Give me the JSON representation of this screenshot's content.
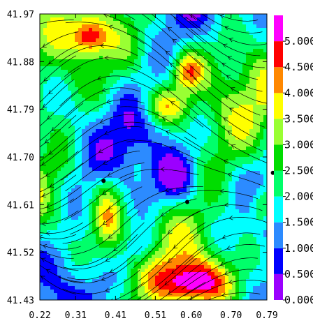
{
  "chart_data": {
    "type": "heatmap",
    "title": "",
    "xlabel": "",
    "ylabel": "",
    "xlim": [
      0.22,
      0.79
    ],
    "ylim": [
      41.43,
      41.97
    ],
    "x_ticks": [
      "0.22",
      "0.31",
      "0.41",
      "0.51",
      "0.60",
      "0.70",
      "0.79"
    ],
    "y_ticks": [
      "41.97",
      "41.88",
      "41.79",
      "41.70",
      "41.61",
      "41.52",
      "41.43"
    ],
    "overlay": "streamlines",
    "markers": [
      {
        "x": 0.38,
        "y": 41.655
      },
      {
        "x": 0.59,
        "y": 41.615
      },
      {
        "x": 0.805,
        "y": 41.67
      }
    ],
    "colorbar": {
      "range": [
        0.0,
        5.5
      ],
      "tick_labels": [
        "0.000",
        "0.500",
        "1.000",
        "1.500",
        "2.000",
        "2.500",
        "3.000",
        "3.500",
        "4.000",
        "4.500",
        "5.000"
      ],
      "tick_values": [
        0.0,
        0.5,
        1.0,
        1.5,
        2.0,
        2.5,
        3.0,
        3.5,
        4.0,
        4.5,
        5.0
      ],
      "bins": [
        {
          "from": 0.0,
          "to": 0.5,
          "color": "#9b00ff"
        },
        {
          "from": 0.5,
          "to": 1.0,
          "color": "#0000ff"
        },
        {
          "from": 1.0,
          "to": 1.5,
          "color": "#2c8bff"
        },
        {
          "from": 1.5,
          "to": 2.0,
          "color": "#00ffff"
        },
        {
          "from": 2.0,
          "to": 2.5,
          "color": "#00ff6a"
        },
        {
          "from": 2.5,
          "to": 3.0,
          "color": "#00dd00"
        },
        {
          "from": 3.0,
          "to": 3.5,
          "color": "#99ff33"
        },
        {
          "from": 3.5,
          "to": 4.0,
          "color": "#ffff00"
        },
        {
          "from": 4.0,
          "to": 4.5,
          "color": "#ff8800"
        },
        {
          "from": 4.5,
          "to": 5.0,
          "color": "#ff0000"
        },
        {
          "from": 5.0,
          "to": 5.5,
          "color": "#ff00ff"
        }
      ]
    }
  }
}
